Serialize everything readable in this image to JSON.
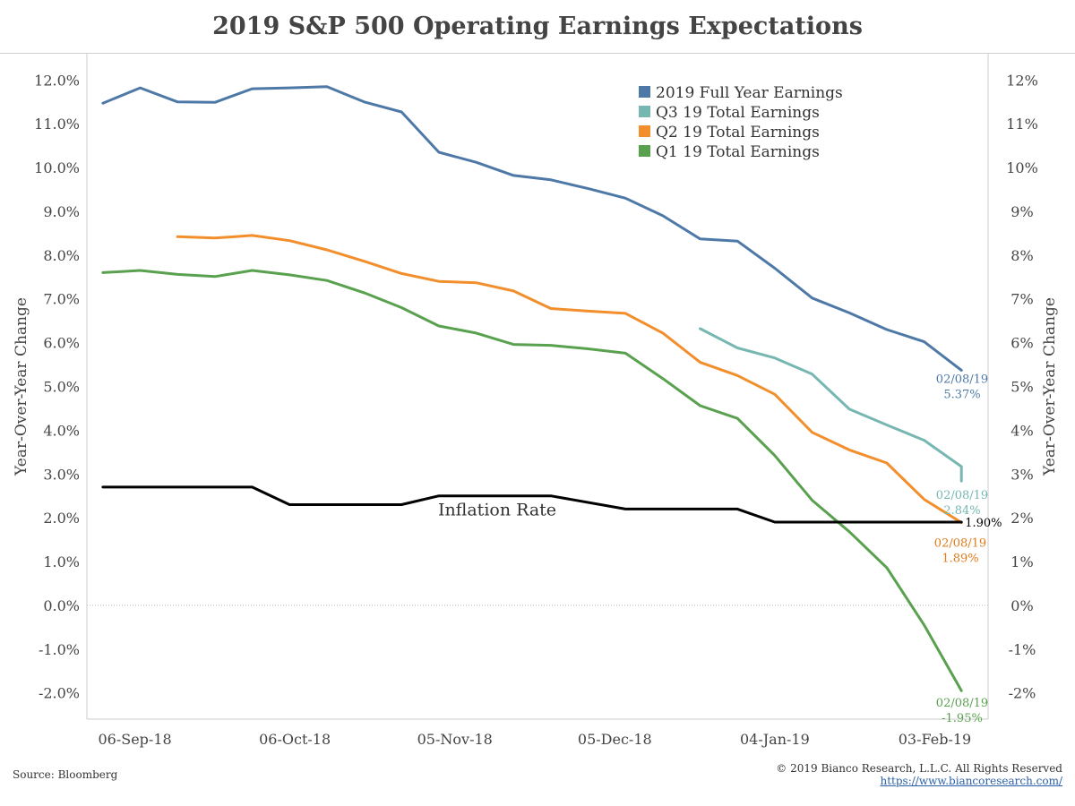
{
  "header": {
    "title": "2019 S&P 500 Operating Earnings Expectations"
  },
  "footer": {
    "source": "Source: Bloomberg",
    "copyright": "© 2019 Bianco Research, L.L.C. All Rights Reserved",
    "url": "https://www.biancoresearch.com/"
  },
  "colors": {
    "full_year": "#4e79a7",
    "q3": "#76b7b2",
    "q2": "#f28e2b",
    "q1": "#59a14f",
    "inflation": "#000000"
  },
  "chart_data": {
    "type": "line",
    "title": "2019 S&P 500 Operating Earnings Expectations",
    "xlabel": "",
    "ylabel_left": "Year-Over-Year Change",
    "ylabel_right": "Year-Over-Year Change",
    "x_range": [
      "2018-08-28",
      "2019-02-13"
    ],
    "ylim": [
      -2.6,
      12.6
    ],
    "x_ticks": [
      {
        "date": "2018-09-06",
        "label": "06-Sep-18"
      },
      {
        "date": "2018-10-06",
        "label": "06-Oct-18"
      },
      {
        "date": "2018-11-05",
        "label": "05-Nov-18"
      },
      {
        "date": "2018-12-05",
        "label": "05-Dec-18"
      },
      {
        "date": "2019-01-04",
        "label": "04-Jan-19"
      },
      {
        "date": "2019-02-03",
        "label": "03-Feb-19"
      }
    ],
    "y_ticks_left": [
      {
        "value": 12,
        "label": "12.0%"
      },
      {
        "value": 11,
        "label": "11.0%"
      },
      {
        "value": 10,
        "label": "10.0%"
      },
      {
        "value": 9,
        "label": "9.0%"
      },
      {
        "value": 8,
        "label": "8.0%"
      },
      {
        "value": 7,
        "label": "7.0%"
      },
      {
        "value": 6,
        "label": "6.0%"
      },
      {
        "value": 5,
        "label": "5.0%"
      },
      {
        "value": 4,
        "label": "4.0%"
      },
      {
        "value": 3,
        "label": "3.0%"
      },
      {
        "value": 2,
        "label": "2.0%"
      },
      {
        "value": 1,
        "label": "1.0%"
      },
      {
        "value": 0,
        "label": "0.0%"
      },
      {
        "value": -1,
        "label": "-1.0%"
      },
      {
        "value": -2,
        "label": "-2.0%"
      }
    ],
    "y_ticks_right": [
      {
        "value": 12,
        "label": "12%"
      },
      {
        "value": 11,
        "label": "11%"
      },
      {
        "value": 10,
        "label": "10%"
      },
      {
        "value": 9,
        "label": "9%"
      },
      {
        "value": 8,
        "label": "8%"
      },
      {
        "value": 7,
        "label": "7%"
      },
      {
        "value": 6,
        "label": "6%"
      },
      {
        "value": 5,
        "label": "5%"
      },
      {
        "value": 4,
        "label": "4%"
      },
      {
        "value": 3,
        "label": "3%"
      },
      {
        "value": 2,
        "label": "2%"
      },
      {
        "value": 1,
        "label": "1%"
      },
      {
        "value": 0,
        "label": "0%"
      },
      {
        "value": -1,
        "label": "-1%"
      },
      {
        "value": -2,
        "label": "-2%"
      }
    ],
    "zero_line": true,
    "grid": false,
    "legend_position": "top-right",
    "series": [
      {
        "name": "2019 Full Year Earnings",
        "color_key": "full_year",
        "legend": true,
        "points": [
          [
            "2018-08-31",
            11.47
          ],
          [
            "2018-09-07",
            11.82
          ],
          [
            "2018-09-14",
            11.5
          ],
          [
            "2018-09-21",
            11.49
          ],
          [
            "2018-09-28",
            11.8
          ],
          [
            "2018-10-05",
            11.82
          ],
          [
            "2018-10-12",
            11.85
          ],
          [
            "2018-10-19",
            11.5
          ],
          [
            "2018-10-26",
            11.27
          ],
          [
            "2018-11-02",
            10.35
          ],
          [
            "2018-11-09",
            10.12
          ],
          [
            "2018-11-16",
            9.82
          ],
          [
            "2018-11-23",
            9.72
          ],
          [
            "2018-11-30",
            9.52
          ],
          [
            "2018-12-07",
            9.3
          ],
          [
            "2018-12-14",
            8.9
          ],
          [
            "2018-12-21",
            8.37
          ],
          [
            "2018-12-28",
            8.32
          ],
          [
            "2019-01-04",
            7.7
          ],
          [
            "2019-01-11",
            7.02
          ],
          [
            "2019-01-18",
            6.68
          ],
          [
            "2019-01-25",
            6.3
          ],
          [
            "2019-02-01",
            6.02
          ],
          [
            "2019-02-08",
            5.37
          ]
        ],
        "end_label": {
          "date": "02/08/19",
          "value": "5.37%"
        }
      },
      {
        "name": "Q3 19 Total Earnings",
        "color_key": "q3",
        "legend": true,
        "points": [
          [
            "2018-12-21",
            6.32
          ],
          [
            "2018-12-28",
            5.88
          ],
          [
            "2019-01-04",
            5.65
          ],
          [
            "2019-01-11",
            5.28
          ],
          [
            "2019-01-18",
            4.48
          ],
          [
            "2019-01-25",
            4.12
          ],
          [
            "2019-02-01",
            3.77
          ],
          [
            "2019-02-08",
            3.17
          ],
          [
            "2019-02-08",
            2.84
          ]
        ],
        "end_label": {
          "date": "02/08/19",
          "value": "2.84%"
        }
      },
      {
        "name": "Q2 19 Total Earnings",
        "color_key": "q2",
        "legend": true,
        "points": [
          [
            "2018-09-14",
            8.42
          ],
          [
            "2018-09-21",
            8.39
          ],
          [
            "2018-09-28",
            8.45
          ],
          [
            "2018-10-05",
            8.33
          ],
          [
            "2018-10-12",
            8.12
          ],
          [
            "2018-10-19",
            7.86
          ],
          [
            "2018-10-26",
            7.58
          ],
          [
            "2018-11-02",
            7.4
          ],
          [
            "2018-11-09",
            7.37
          ],
          [
            "2018-11-16",
            7.18
          ],
          [
            "2018-11-23",
            6.78
          ],
          [
            "2018-11-30",
            6.72
          ],
          [
            "2018-12-07",
            6.67
          ],
          [
            "2018-12-14",
            6.22
          ],
          [
            "2018-12-21",
            5.55
          ],
          [
            "2018-12-28",
            5.25
          ],
          [
            "2019-01-04",
            4.82
          ],
          [
            "2019-01-11",
            3.95
          ],
          [
            "2019-01-18",
            3.55
          ],
          [
            "2019-01-25",
            3.25
          ],
          [
            "2019-02-01",
            2.42
          ],
          [
            "2019-02-08",
            1.89
          ]
        ],
        "end_label": {
          "date": "02/08/19",
          "value": "1.89%"
        }
      },
      {
        "name": "Q1 19 Total Earnings",
        "color_key": "q1",
        "legend": true,
        "points": [
          [
            "2018-08-31",
            7.6
          ],
          [
            "2018-09-07",
            7.65
          ],
          [
            "2018-09-14",
            7.56
          ],
          [
            "2018-09-21",
            7.51
          ],
          [
            "2018-09-28",
            7.65
          ],
          [
            "2018-10-05",
            7.55
          ],
          [
            "2018-10-12",
            7.42
          ],
          [
            "2018-10-19",
            7.14
          ],
          [
            "2018-10-26",
            6.8
          ],
          [
            "2018-11-02",
            6.38
          ],
          [
            "2018-11-09",
            6.22
          ],
          [
            "2018-11-16",
            5.96
          ],
          [
            "2018-11-23",
            5.94
          ],
          [
            "2018-11-30",
            5.86
          ],
          [
            "2018-12-07",
            5.76
          ],
          [
            "2018-12-14",
            5.18
          ],
          [
            "2018-12-21",
            4.56
          ],
          [
            "2018-12-28",
            4.27
          ],
          [
            "2019-01-04",
            3.42
          ],
          [
            "2019-01-11",
            2.4
          ],
          [
            "2019-01-18",
            1.68
          ],
          [
            "2019-01-25",
            0.86
          ],
          [
            "2019-02-01",
            -0.45
          ],
          [
            "2019-02-08",
            -1.95
          ]
        ],
        "end_label": {
          "date": "02/08/19",
          "value": "-1.95%"
        }
      },
      {
        "name": "Inflation Rate",
        "color_key": "inflation",
        "legend": false,
        "points": [
          [
            "2018-08-31",
            2.7
          ],
          [
            "2018-09-28",
            2.7
          ],
          [
            "2018-10-05",
            2.3
          ],
          [
            "2018-10-26",
            2.3
          ],
          [
            "2018-11-02",
            2.5
          ],
          [
            "2018-11-23",
            2.5
          ],
          [
            "2018-12-07",
            2.2
          ],
          [
            "2018-12-28",
            2.2
          ],
          [
            "2019-01-04",
            1.9
          ],
          [
            "2019-02-08",
            1.9
          ]
        ],
        "inline_label": "Inflation Rate",
        "end_label": {
          "value": "1.90%"
        }
      }
    ]
  }
}
